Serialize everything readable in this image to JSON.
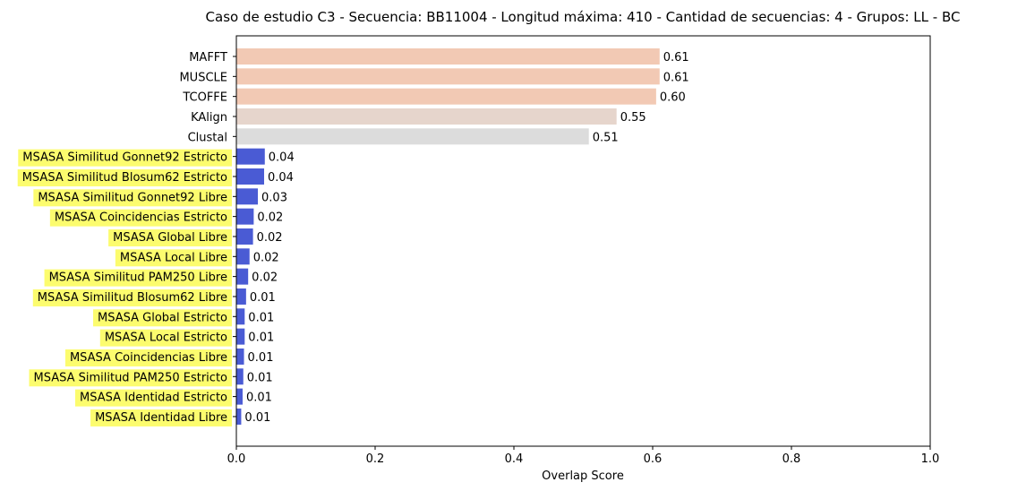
{
  "chart_data": {
    "type": "bar",
    "orientation": "horizontal",
    "title": "Caso de estudio C3 - Secuencia: BB11004 - Longitud máxima: 410 - Cantidad de secuencias: 4 - Grupos: LL - BC",
    "xlabel": "Overlap Score",
    "ylabel": "",
    "xlim": [
      0.0,
      1.0
    ],
    "xticks": [
      "0.0",
      "0.2",
      "0.4",
      "0.6",
      "0.8",
      "1.0"
    ],
    "grid": false,
    "bars": [
      {
        "label": "MAFFT",
        "value": 0.61,
        "value_label": "0.61",
        "color": "#f2c9b4",
        "highlight": false
      },
      {
        "label": "MUSCLE",
        "value": 0.61,
        "value_label": "0.61",
        "color": "#f2c9b4",
        "highlight": false
      },
      {
        "label": "TCOFFE",
        "value": 0.605,
        "value_label": "0.60",
        "color": "#f2c9b4",
        "highlight": false
      },
      {
        "label": "KAlign",
        "value": 0.548,
        "value_label": "0.55",
        "color": "#e6d5cc",
        "highlight": false
      },
      {
        "label": "Clustal",
        "value": 0.508,
        "value_label": "0.51",
        "color": "#dcdcdc",
        "highlight": false
      },
      {
        "label": "MSASA Similitud Gonnet92 Estricto",
        "value": 0.041,
        "value_label": "0.04",
        "color": "#4a5bd4",
        "highlight": true
      },
      {
        "label": "MSASA Similitud Blosum62 Estricto",
        "value": 0.04,
        "value_label": "0.04",
        "color": "#4a5bd4",
        "highlight": true
      },
      {
        "label": "MSASA Similitud Gonnet92 Libre",
        "value": 0.031,
        "value_label": "0.03",
        "color": "#4a5bd4",
        "highlight": true
      },
      {
        "label": "MSASA Coincidencias Estricto",
        "value": 0.025,
        "value_label": "0.02",
        "color": "#4a5bd4",
        "highlight": true
      },
      {
        "label": "MSASA Global Libre",
        "value": 0.024,
        "value_label": "0.02",
        "color": "#4a5bd4",
        "highlight": true
      },
      {
        "label": "MSASA Local Libre",
        "value": 0.019,
        "value_label": "0.02",
        "color": "#4a5bd4",
        "highlight": true
      },
      {
        "label": "MSASA Similitud PAM250 Libre",
        "value": 0.017,
        "value_label": "0.02",
        "color": "#4a5bd4",
        "highlight": true
      },
      {
        "label": "MSASA Similitud Blosum62 Libre",
        "value": 0.014,
        "value_label": "0.01",
        "color": "#4a5bd4",
        "highlight": true
      },
      {
        "label": "MSASA Global Estricto",
        "value": 0.012,
        "value_label": "0.01",
        "color": "#4a5bd4",
        "highlight": true
      },
      {
        "label": "MSASA Local Estricto",
        "value": 0.012,
        "value_label": "0.01",
        "color": "#4a5bd4",
        "highlight": true
      },
      {
        "label": "MSASA Coincidencias Libre",
        "value": 0.011,
        "value_label": "0.01",
        "color": "#4a5bd4",
        "highlight": true
      },
      {
        "label": "MSASA Similitud PAM250 Estricto",
        "value": 0.01,
        "value_label": "0.01",
        "color": "#4a5bd4",
        "highlight": true
      },
      {
        "label": "MSASA Identidad Estricto",
        "value": 0.009,
        "value_label": "0.01",
        "color": "#4a5bd4",
        "highlight": true
      },
      {
        "label": "MSASA Identidad Libre",
        "value": 0.007,
        "value_label": "0.01",
        "color": "#4a5bd4",
        "highlight": true
      }
    ],
    "highlight_color": "#fcfc6e"
  }
}
